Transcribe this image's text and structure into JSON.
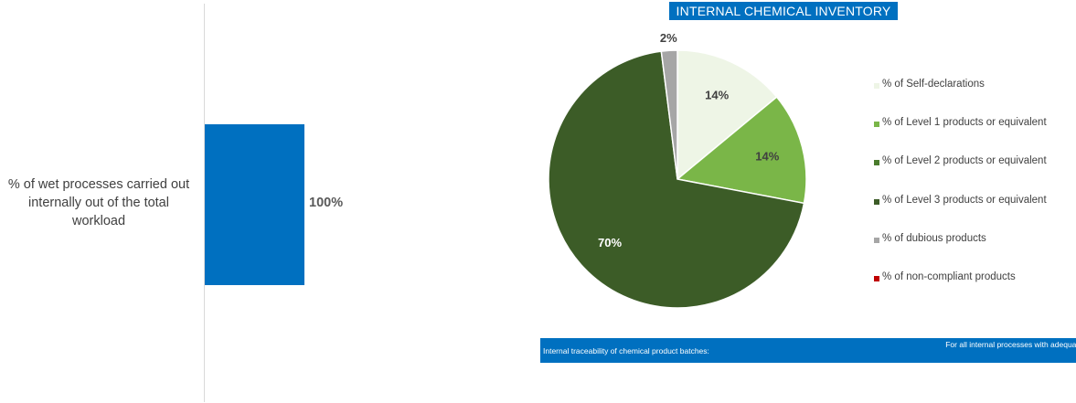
{
  "bar_chart": {
    "label_suffix": "%"
  },
  "pie_chart": {
    "title": "INTERNAL CHEMICAL INVENTORY"
  },
  "colors": {
    "bar": "#0070c0",
    "slices": [
      "#eef5e6",
      "#7ab648",
      "#4a7c2c",
      "#3c5c27",
      "#a6a6a6",
      "#c00000"
    ],
    "pie_label_dark": "#404040",
    "pie_label_light": "#ffffff"
  },
  "traceability": {
    "label": "Internal traceability of chemical product batches:",
    "value": "For all internal processes with adequate system"
  },
  "chart_data": [
    {
      "type": "bar",
      "orientation": "horizontal",
      "categories": [
        "% of wet processes carried out internally out of the total workload"
      ],
      "values": [
        100
      ],
      "data_labels": [
        "100%"
      ],
      "xlim": [
        0,
        100
      ]
    },
    {
      "type": "pie",
      "title": "INTERNAL CHEMICAL INVENTORY",
      "labels": [
        "% of Self-declarations",
        "% of Level 1 products or equivalent",
        "% of Level 2 products or equivalent",
        "% of Level 3 products or equivalent",
        "% of dubious products",
        "% of non-compliant products"
      ],
      "values": [
        14,
        14,
        0,
        70,
        2,
        0
      ],
      "data_labels": [
        "14%",
        "14%",
        "",
        "70%",
        "2%",
        ""
      ],
      "legend": "right"
    }
  ]
}
